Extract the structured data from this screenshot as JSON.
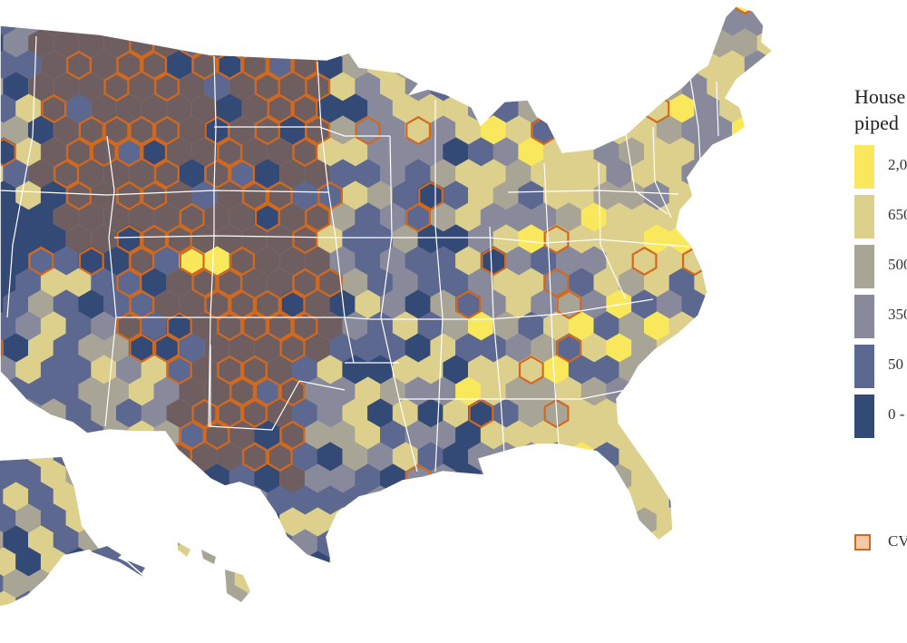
{
  "legend": {
    "title_line1": "House",
    "title_line2": "piped",
    "classes": [
      {
        "label": "2,0",
        "color": "#f9e85c"
      },
      {
        "label": "650",
        "color": "#ddcf8c"
      },
      {
        "label": "500",
        "color": "#a8a596"
      },
      {
        "label": "350",
        "color": "#888a9c"
      },
      {
        "label": "50 ",
        "color": "#5d6890"
      },
      {
        "label": "0 -",
        "color": "#344a76"
      }
    ],
    "overlay_label": "CVI",
    "overlay_color": "#d2691e",
    "overlay_fill": "#f5c9a8"
  },
  "colors": {
    "plains_fill": "#6e5e60",
    "plains_hex_outline": "#7e6c6e",
    "cvi_outline": "#d2691e",
    "boundary": "#ffffff",
    "ocean": "#ffffff"
  }
}
